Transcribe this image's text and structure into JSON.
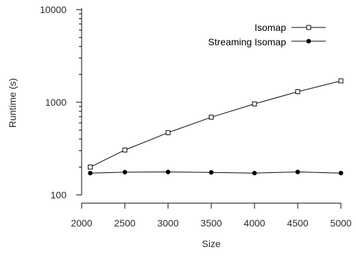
{
  "chart_data": {
    "type": "line",
    "title": "",
    "xlabel": "Size",
    "ylabel": "Runtime (s)",
    "x_scale": "linear",
    "y_scale": "log",
    "xlim": [
      2000,
      5000
    ],
    "ylim": [
      100,
      10000
    ],
    "x_ticks": [
      "2000",
      "2500",
      "3000",
      "3500",
      "4000",
      "4500",
      "5000"
    ],
    "y_ticks": [
      "100",
      "1000",
      "10000"
    ],
    "grid": false,
    "legend_position": "top-right",
    "x": [
      2100,
      2500,
      3000,
      3500,
      4000,
      4500,
      5000
    ],
    "series": [
      {
        "name": "Isomap",
        "marker": "open-square",
        "color": "#000000",
        "values": [
          200,
          305,
          470,
          690,
          960,
          1300,
          1700
        ]
      },
      {
        "name": "Streaming Isomap",
        "marker": "filled-circle",
        "color": "#000000",
        "values": [
          172,
          176,
          177,
          175,
          172,
          177,
          172
        ]
      }
    ]
  }
}
